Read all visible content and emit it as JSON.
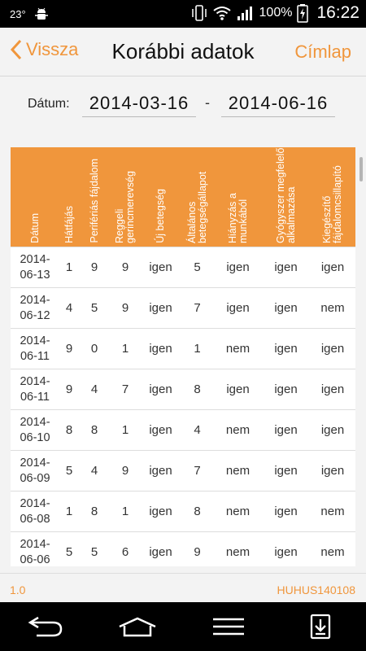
{
  "status": {
    "temperature": "23°",
    "battery": "100%",
    "time": "16:22"
  },
  "header": {
    "back_label": "Vissza",
    "title": "Korábbi adatok",
    "home_label": "Címlap"
  },
  "date_filter": {
    "label": "Dátum:",
    "from": "2014-03-16",
    "separator": "-",
    "to": "2014-06-16"
  },
  "table": {
    "columns": [
      "Dátum",
      "Hátfájás",
      "Perifériás fájdalom",
      "Reggeli gerincmerevség",
      "Új betegség",
      "Általános betegségállapot",
      "Hiányzás a munkából",
      "Gyógyszer megfelelő alkalmazása",
      "Kiegészítő fájdalomcsillapító"
    ],
    "rows": [
      {
        "date_y": "2014-",
        "date_md": "06-13",
        "cells": [
          "1",
          "9",
          "9",
          "igen",
          "5",
          "igen",
          "igen",
          "igen"
        ]
      },
      {
        "date_y": "2014-",
        "date_md": "06-12",
        "cells": [
          "4",
          "5",
          "9",
          "igen",
          "7",
          "igen",
          "igen",
          "nem"
        ]
      },
      {
        "date_y": "2014-",
        "date_md": "06-11",
        "cells": [
          "9",
          "0",
          "1",
          "igen",
          "1",
          "nem",
          "igen",
          "igen"
        ]
      },
      {
        "date_y": "2014-",
        "date_md": "06-11",
        "cells": [
          "9",
          "4",
          "7",
          "igen",
          "8",
          "igen",
          "igen",
          "igen"
        ]
      },
      {
        "date_y": "2014-",
        "date_md": "06-10",
        "cells": [
          "8",
          "8",
          "1",
          "igen",
          "4",
          "nem",
          "igen",
          "igen"
        ]
      },
      {
        "date_y": "2014-",
        "date_md": "06-09",
        "cells": [
          "5",
          "4",
          "9",
          "igen",
          "7",
          "nem",
          "igen",
          "igen"
        ]
      },
      {
        "date_y": "2014-",
        "date_md": "06-08",
        "cells": [
          "1",
          "8",
          "1",
          "igen",
          "8",
          "nem",
          "igen",
          "nem"
        ]
      },
      {
        "date_y": "2014-",
        "date_md": "06-06",
        "cells": [
          "5",
          "5",
          "6",
          "igen",
          "9",
          "nem",
          "igen",
          "nem"
        ]
      }
    ]
  },
  "footer": {
    "version": "1.0",
    "code": "HUHUS140108"
  },
  "colors": {
    "accent": "#f0963c",
    "header_bg": "#f0963c",
    "background": "#f3f3f3"
  },
  "icons": {
    "status_left": [
      "android-debug-icon"
    ],
    "status_right": [
      "vibrate-icon",
      "wifi-icon",
      "signal-icon",
      "battery-charging-icon"
    ],
    "nav": [
      "back-nav-icon",
      "home-nav-icon",
      "menu-nav-icon",
      "download-nav-icon"
    ]
  }
}
